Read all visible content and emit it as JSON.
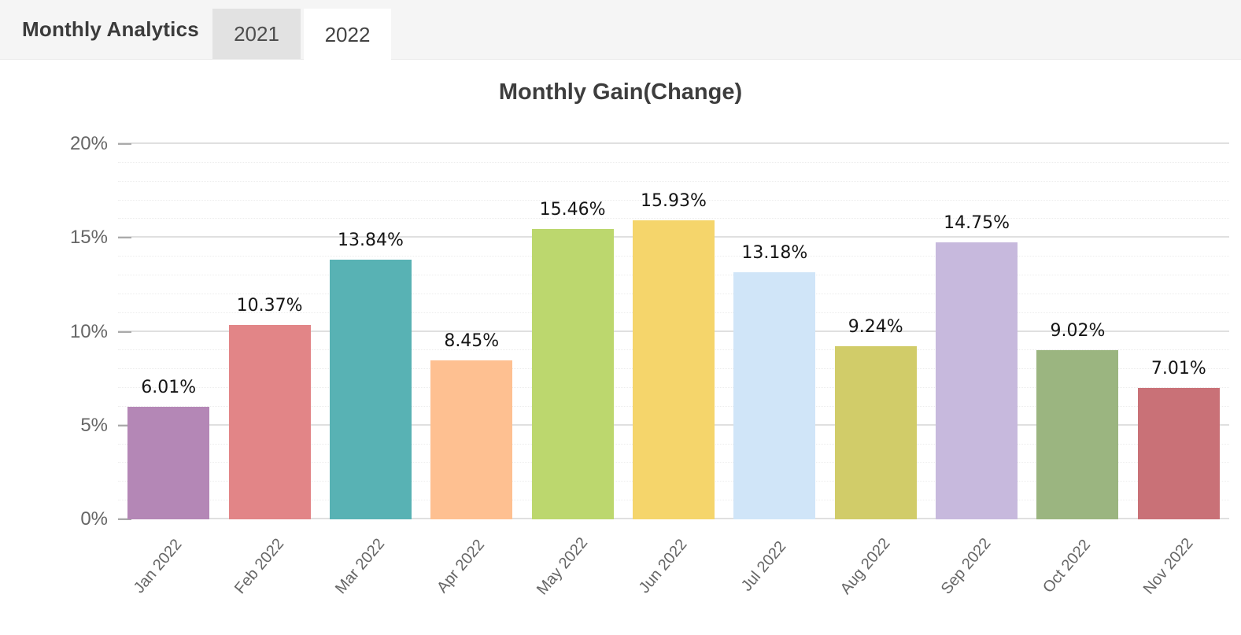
{
  "header": {
    "title": "Monthly Analytics",
    "tabs": [
      {
        "label": "2021",
        "active": false
      },
      {
        "label": "2022",
        "active": true
      }
    ]
  },
  "chart_data": {
    "type": "bar",
    "title": "Monthly Gain(Change)",
    "categories": [
      "Jan 2022",
      "Feb 2022",
      "Mar 2022",
      "Apr 2022",
      "May 2022",
      "Jun 2022",
      "Jul 2022",
      "Aug 2022",
      "Sep 2022",
      "Oct 2022",
      "Nov 2022"
    ],
    "values": [
      6.01,
      10.37,
      13.84,
      8.45,
      15.46,
      15.93,
      13.18,
      9.24,
      14.75,
      9.02,
      7.01
    ],
    "data_labels": [
      "6.01%",
      "10.37%",
      "13.84%",
      "8.45%",
      "15.46%",
      "15.93%",
      "13.18%",
      "9.24%",
      "14.75%",
      "9.02%",
      "7.01%"
    ],
    "bar_colors": [
      "#b487b6",
      "#e28587",
      "#58b2b4",
      "#fec091",
      "#bcd76e",
      "#f5d56b",
      "#d0e5f8",
      "#d1cc69",
      "#c7b9dd",
      "#9bb580",
      "#c97177"
    ],
    "xlabel": "",
    "ylabel": "",
    "ylim": [
      0,
      20
    ],
    "y_ticks": [
      {
        "label": "20%",
        "value": 20
      },
      {
        "label": "15%",
        "value": 15
      },
      {
        "label": "10%",
        "value": 10
      },
      {
        "label": "5%",
        "value": 5
      },
      {
        "label": "0%",
        "value": 0
      }
    ],
    "grid": {
      "major_interval_pct": 5,
      "minor_interval_pct": 1,
      "major_on": true,
      "minor_on": true
    },
    "legend": "none",
    "x_label_rotation_deg": -50
  },
  "colors": {
    "page_bg": "#ffffff",
    "header_bg": "#f5f5f5",
    "header_text": "#3b3b3b",
    "tab_inactive_bg": "#e2e2e2",
    "tab_active_bg": "#ffffff",
    "axis_text": "#666666",
    "data_label_text": "#151515",
    "major_gridline": "#e0e0e0",
    "minor_gridline": "#ededed",
    "tick_mark": "#aaaaaa"
  }
}
